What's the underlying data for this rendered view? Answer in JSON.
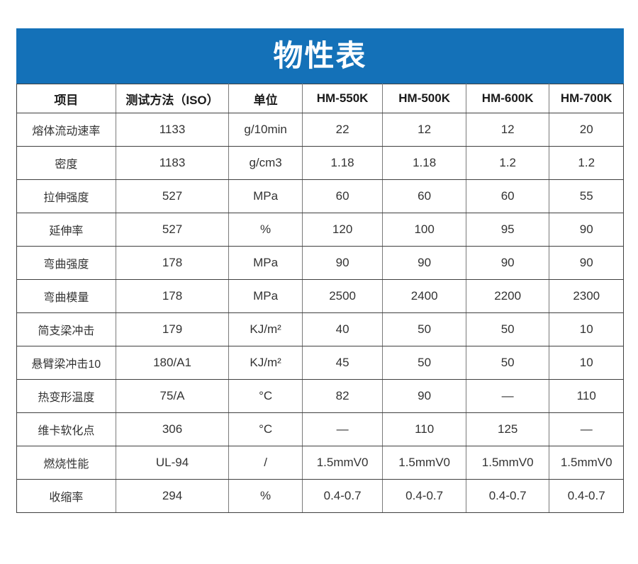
{
  "banner": {
    "title": "物性表"
  },
  "colors": {
    "banner_bg": "#1471b8",
    "banner_text": "#ffffff",
    "grid_horizontal": "#3f3f3f",
    "grid_vertical": "#7a7a7a",
    "cell_text": "#333333"
  },
  "table": {
    "headers": [
      "项目",
      "测试方法（ISO）",
      "单位",
      "HM-550K",
      "HM-500K",
      "HM-600K",
      "HM-700K"
    ],
    "rows": [
      [
        "熔体流动速率",
        "1133",
        "g/10min",
        "22",
        "12",
        "12",
        "20"
      ],
      [
        "密度",
        "1183",
        "g/cm3",
        "1.18",
        "1.18",
        "1.2",
        "1.2"
      ],
      [
        "拉伸强度",
        "527",
        "MPa",
        "60",
        "60",
        "60",
        "55"
      ],
      [
        "延伸率",
        "527",
        "%",
        "120",
        "100",
        "95",
        "90"
      ],
      [
        "弯曲强度",
        "178",
        "MPa",
        "90",
        "90",
        "90",
        "90"
      ],
      [
        "弯曲模量",
        "178",
        "MPa",
        "2500",
        "2400",
        "2200",
        "2300"
      ],
      [
        "简支梁冲击",
        "179",
        "KJ/m²",
        "40",
        "50",
        "50",
        "10"
      ],
      [
        "悬臂梁冲击10",
        "180/A1",
        "KJ/m²",
        "45",
        "50",
        "50",
        "10"
      ],
      [
        "热变形温度",
        "75/A",
        "°C",
        "82",
        "90",
        "—",
        "110"
      ],
      [
        "维卡软化点",
        "306",
        "°C",
        "—",
        "110",
        "125",
        "—"
      ],
      [
        "燃烧性能",
        "UL-94",
        "/",
        "1.5mmV0",
        "1.5mmV0",
        "1.5mmV0",
        "1.5mmV0"
      ],
      [
        "收缩率",
        "294",
        "%",
        "0.4-0.7",
        "0.4-0.7",
        "0.4-0.7",
        "0.4-0.7"
      ]
    ]
  }
}
